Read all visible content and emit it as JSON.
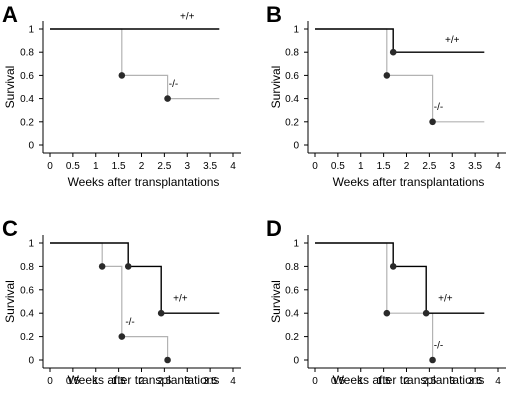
{
  "chart_data": [
    {
      "type": "line",
      "panel": "A",
      "xlabel": "Weeks after transplantations",
      "ylabel": "Survival",
      "xlim": [
        0,
        4
      ],
      "ylim": [
        0,
        1
      ],
      "x_ticks": [
        "0",
        "0.5",
        "1",
        "1.5",
        "2",
        "2.5",
        "3",
        "3.5",
        "4"
      ],
      "y_ticks": [
        "0",
        "0.2",
        "0.4",
        "0.6",
        "0.8",
        "1"
      ],
      "series": [
        {
          "name": "+/+",
          "color": "#000000",
          "steps": [
            [
              0,
              1
            ],
            [
              3.7,
              1
            ]
          ],
          "events": []
        },
        {
          "name": "-/-",
          "color": "#b3b3b3",
          "steps": [
            [
              0,
              1
            ],
            [
              1.57,
              1
            ],
            [
              1.57,
              0.6
            ],
            [
              2.57,
              0.6
            ],
            [
              2.57,
              0.4
            ],
            [
              3.7,
              0.4
            ]
          ],
          "events": [
            [
              1.57,
              0.6
            ],
            [
              2.57,
              0.4
            ]
          ]
        }
      ]
    },
    {
      "type": "line",
      "panel": "B",
      "xlabel": "Weeks after transplantations",
      "ylabel": "Survival",
      "xlim": [
        0,
        4
      ],
      "ylim": [
        0,
        1
      ],
      "x_ticks": [
        "0",
        "0.5",
        "1",
        "1.5",
        "2",
        "2.5",
        "3",
        "3.5",
        "4"
      ],
      "y_ticks": [
        "0",
        "0.2",
        "0.4",
        "0.6",
        "0.8",
        "1"
      ],
      "series": [
        {
          "name": "+/+",
          "color": "#000000",
          "steps": [
            [
              0,
              1
            ],
            [
              1.71,
              1
            ],
            [
              1.71,
              0.8
            ],
            [
              3.7,
              0.8
            ]
          ],
          "events": [
            [
              1.71,
              0.8
            ]
          ]
        },
        {
          "name": "-/-",
          "color": "#b3b3b3",
          "steps": [
            [
              0,
              1
            ],
            [
              1.57,
              1
            ],
            [
              1.57,
              0.6
            ],
            [
              2.57,
              0.6
            ],
            [
              2.57,
              0.2
            ],
            [
              3.7,
              0.2
            ]
          ],
          "events": [
            [
              1.57,
              0.6
            ],
            [
              2.57,
              0.2
            ]
          ]
        }
      ]
    },
    {
      "type": "line",
      "panel": "C",
      "xlabel": "Weeks after transplantations",
      "ylabel": "Survival",
      "xlim": [
        0,
        4
      ],
      "ylim": [
        0,
        1
      ],
      "x_ticks": [
        "0",
        "0.5",
        "1",
        "1.5",
        "2",
        "2.5",
        "3",
        "3.5",
        "4"
      ],
      "y_ticks": [
        "0",
        "0.2",
        "0.4",
        "0.6",
        "0.8",
        "1"
      ],
      "series": [
        {
          "name": "+/+",
          "color": "#000000",
          "steps": [
            [
              0,
              1
            ],
            [
              1.71,
              1
            ],
            [
              1.71,
              0.8
            ],
            [
              2.43,
              0.8
            ],
            [
              2.43,
              0.4
            ],
            [
              3.7,
              0.4
            ]
          ],
          "events": [
            [
              1.71,
              0.8
            ],
            [
              2.43,
              0.4
            ]
          ]
        },
        {
          "name": "-/-",
          "color": "#b3b3b3",
          "steps": [
            [
              0,
              1
            ],
            [
              1.14,
              1
            ],
            [
              1.14,
              0.8
            ],
            [
              1.57,
              0.8
            ],
            [
              1.57,
              0.2
            ],
            [
              2.57,
              0.2
            ],
            [
              2.57,
              0
            ]
          ],
          "events": [
            [
              1.14,
              0.8
            ],
            [
              1.57,
              0.2
            ],
            [
              2.57,
              0
            ]
          ]
        }
      ]
    },
    {
      "type": "line",
      "panel": "D",
      "xlabel": "Weeks after transplantations",
      "ylabel": "Survival",
      "xlim": [
        0,
        4
      ],
      "ylim": [
        0,
        1
      ],
      "x_ticks": [
        "0",
        "0.5",
        "1",
        "1.5",
        "2",
        "2.5",
        "3",
        "3.5",
        "4"
      ],
      "y_ticks": [
        "0",
        "0.2",
        "0.4",
        "0.6",
        "0.8",
        "1"
      ],
      "series": [
        {
          "name": "+/+",
          "color": "#000000",
          "steps": [
            [
              0,
              1
            ],
            [
              1.71,
              1
            ],
            [
              1.71,
              0.8
            ],
            [
              2.43,
              0.8
            ],
            [
              2.43,
              0.4
            ],
            [
              3.7,
              0.4
            ]
          ],
          "events": [
            [
              1.71,
              0.8
            ],
            [
              2.43,
              0.4
            ]
          ]
        },
        {
          "name": "-/-",
          "color": "#b3b3b3",
          "steps": [
            [
              0,
              1
            ],
            [
              1.57,
              1
            ],
            [
              1.57,
              0.4
            ],
            [
              2.57,
              0.4
            ],
            [
              2.57,
              0
            ]
          ],
          "events": [
            [
              1.57,
              0.4
            ],
            [
              2.57,
              0
            ]
          ]
        }
      ]
    }
  ]
}
